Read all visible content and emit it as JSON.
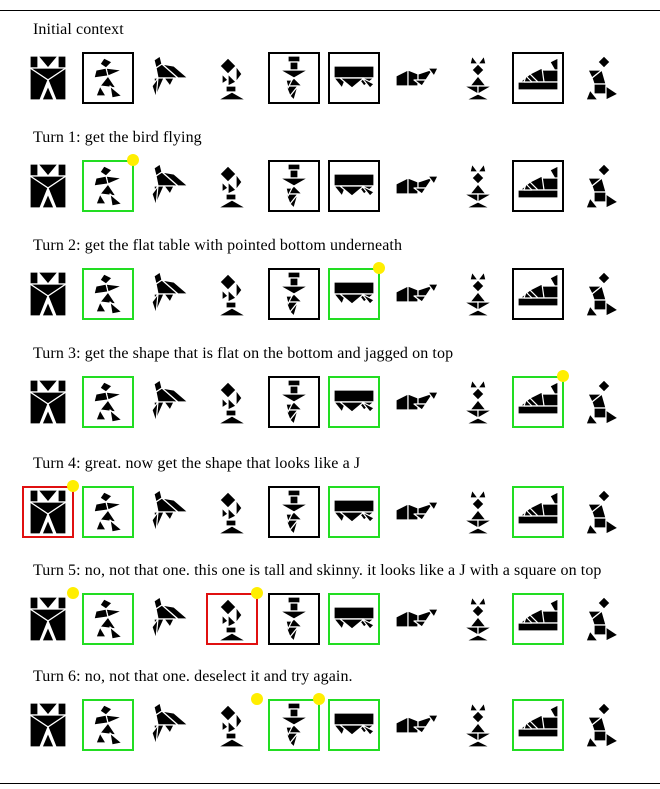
{
  "captions": [
    "Initial context",
    "Turn 1: get the bird flying",
    "Turn 2: get the flat table with pointed bottom underneath",
    "Turn 3: get the shape that is flat on the bottom and jagged on top",
    "Turn 4: great. now get the shape that looks like a J",
    "Turn 5: no, not that one. this one is tall and skinny. it looks like a J with a square on top",
    "Turn 6: no, not that one. deselect it and try again."
  ],
  "tangram_names": [
    "tangram-hourglass-person",
    "tangram-flying-bird",
    "tangram-flag",
    "tangram-j-with-square",
    "tangram-jester",
    "tangram-jagged-table",
    "tangram-low-boot",
    "tangram-dancer",
    "tangram-mountain-ship",
    "tangram-kneeling-figure"
  ],
  "states": {
    "boxed": "black-border",
    "selected": "green-border",
    "wrong": "red-border",
    "dot": "yellow-dot"
  },
  "turns": [
    {
      "boxed": [
        1,
        4,
        5,
        8
      ],
      "green": [],
      "red": [],
      "dots": []
    },
    {
      "boxed": [
        4,
        5,
        8
      ],
      "green": [
        1
      ],
      "red": [],
      "dots": [
        1
      ]
    },
    {
      "boxed": [
        4,
        8
      ],
      "green": [
        1,
        5
      ],
      "red": [],
      "dots": [
        5
      ]
    },
    {
      "boxed": [
        4
      ],
      "green": [
        1,
        5,
        8
      ],
      "red": [],
      "dots": [
        8
      ]
    },
    {
      "boxed": [
        4
      ],
      "green": [
        1,
        5,
        8
      ],
      "red": [
        0
      ],
      "dots": [
        0
      ]
    },
    {
      "boxed": [
        4
      ],
      "green": [
        1,
        5,
        8
      ],
      "red": [
        3
      ],
      "dots": [
        0,
        3
      ]
    },
    {
      "boxed": [],
      "green": [
        1,
        4,
        5,
        8
      ],
      "red": [],
      "dots": [
        3,
        4
      ]
    }
  ],
  "colors": {
    "green": "#22dd22",
    "red": "#e01010",
    "dot": "#ffee00",
    "ink": "#000000"
  }
}
